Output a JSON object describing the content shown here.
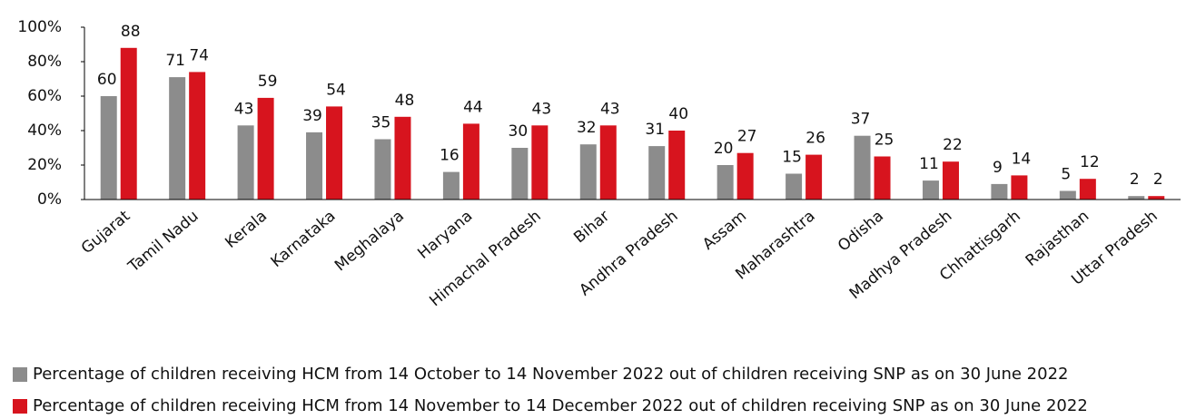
{
  "chart_data": {
    "type": "bar",
    "categories": [
      "Gujarat",
      "Tamil Nadu",
      "Kerala",
      "Karnataka",
      "Meghalaya",
      "Haryana",
      "Himachal Pradesh",
      "Bihar",
      "Andhra Pradesh",
      "Assam",
      "Maharashtra",
      "Odisha",
      "Madhya Pradesh",
      "Chhattisgarh",
      "Rajasthan",
      "Uttar Pradesh"
    ],
    "series": [
      {
        "name": "Percentage of children receiving HCM from 14 October to 14 November 2022 out of children receiving SNP as on 30 June 2022",
        "color": "#8c8c8c",
        "values": [
          60,
          71,
          43,
          39,
          35,
          16,
          30,
          32,
          31,
          20,
          15,
          37,
          11,
          9,
          5,
          2
        ]
      },
      {
        "name": "Percentage of children receiving HCM from 14 November to 14 December 2022 out of children receiving SNP as on 30 June 2022",
        "color": "#d7141e",
        "values": [
          88,
          74,
          59,
          54,
          48,
          44,
          43,
          43,
          40,
          27,
          26,
          25,
          22,
          14,
          12,
          2
        ]
      }
    ],
    "ylim": [
      0,
      100
    ],
    "yticks": [
      {
        "value": 0,
        "label": "0%"
      },
      {
        "value": 20,
        "label": "20%"
      },
      {
        "value": 40,
        "label": "40%"
      },
      {
        "value": 60,
        "label": "60%"
      },
      {
        "value": 80,
        "label": "80%"
      },
      {
        "value": 100,
        "label": "100%"
      }
    ],
    "grid": false
  }
}
